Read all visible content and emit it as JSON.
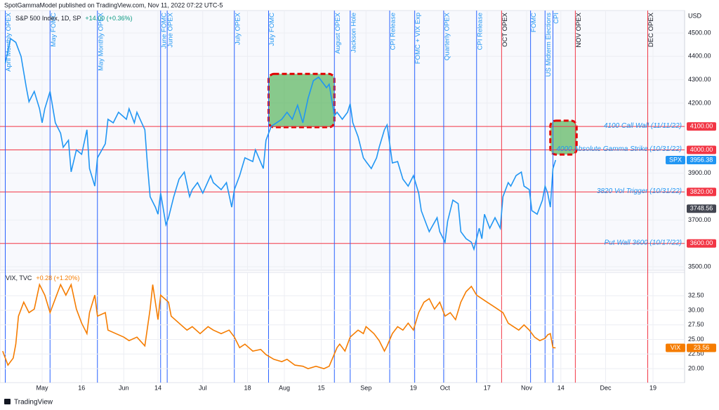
{
  "header": "SpotGammaModel published on TradingView.com, Nov 11, 2022 07:22 UTC-5",
  "footer": "TradingView",
  "chart_data": [
    {
      "type": "line",
      "legend_title": "S&P 500 Index, 1D, SP",
      "legend_change": "+14.00 (+0.36%)",
      "legend_change_color": "#089981",
      "axis_unit": "USD",
      "xlim": [
        105,
        365
      ],
      "ylim": [
        3485,
        4596
      ],
      "grid": true,
      "yticks": [
        {
          "value": 3500,
          "label": "3500.00"
        },
        {
          "value": 3700,
          "label": "3700.00"
        },
        {
          "value": 3900,
          "label": "3900.00"
        },
        {
          "value": 4200,
          "label": "4200.00"
        },
        {
          "value": 4300,
          "label": "4300.00"
        },
        {
          "value": 4400,
          "label": "4400.00"
        },
        {
          "value": 4500,
          "label": "4500.00"
        }
      ],
      "x": [
        107,
        109,
        111,
        113,
        115,
        116,
        118,
        120,
        121,
        122,
        124,
        126,
        128,
        129,
        131,
        132,
        134,
        136,
        138,
        139,
        141,
        142,
        145,
        146,
        148,
        150,
        153,
        154,
        156,
        157,
        160,
        161,
        162,
        164,
        165,
        166,
        168,
        169,
        171,
        173,
        175,
        177,
        178,
        180,
        182,
        185,
        186,
        189,
        191,
        193,
        194,
        196,
        198,
        201,
        202,
        205,
        206,
        208,
        210,
        212,
        214,
        216,
        218,
        220,
        222,
        224,
        226,
        227,
        229,
        230,
        232,
        233,
        235,
        237,
        238,
        239,
        241,
        243,
        244,
        246,
        248,
        249,
        251,
        252,
        254,
        256,
        258,
        260,
        262,
        264,
        265,
        267,
        268,
        271,
        272,
        274,
        275,
        277,
        279,
        280,
        282,
        284,
        285,
        287,
        288,
        289,
        291,
        293,
        295,
        296,
        298,
        299,
        301,
        303,
        304,
        306,
        307,
        309,
        311,
        312,
        313,
        314,
        315,
        316
      ],
      "series": [
        {
          "name": "SPX",
          "color": "#2196f3",
          "values": [
            4370,
            4476,
            4460,
            4400,
            4266,
            4206,
            4250,
            4176,
            4116,
            4176,
            4250,
            4116,
            4071,
            4011,
            4041,
            3906,
            4000,
            3981,
            4086,
            3920,
            3845,
            3966,
            4026,
            4131,
            4116,
            4161,
            4131,
            4176,
            4116,
            4161,
            4086,
            3935,
            3800,
            3755,
            3725,
            3815,
            3680,
            3710,
            3800,
            3875,
            3905,
            3800,
            3830,
            3860,
            3815,
            3890,
            3860,
            3830,
            3860,
            3755,
            3830,
            3890,
            3966,
            3950,
            4000,
            3920,
            4041,
            4101,
            4116,
            4131,
            4161,
            4131,
            4191,
            4116,
            4221,
            4296,
            4311,
            4296,
            4266,
            4281,
            4146,
            4161,
            4131,
            4161,
            4197,
            4116,
            4056,
            3966,
            3950,
            3920,
            3966,
            4011,
            4086,
            4107,
            3944,
            3950,
            3875,
            3845,
            3890,
            3815,
            3740,
            3680,
            3650,
            3710,
            3650,
            3605,
            3695,
            3785,
            3770,
            3650,
            3620,
            3605,
            3575,
            3665,
            3620,
            3725,
            3665,
            3710,
            3665,
            3800,
            3860,
            3845,
            3890,
            3905,
            3845,
            3830,
            3740,
            3725,
            3785,
            3845,
            3815,
            3755,
            3920,
            3956.38
          ]
        }
      ],
      "last_label": {
        "tag": "SPX",
        "value": 3956.38,
        "label": "3956.38"
      },
      "marker_label": {
        "value": 3748.56,
        "label": "3748.56"
      },
      "levels": [
        {
          "value": 4100,
          "label": "4100.00",
          "text": "4100 Call Wall (11/11/22)"
        },
        {
          "value": 4000,
          "label": "4000.00",
          "text": "4000 Absolute Gamma Strike (10/31/22)"
        },
        {
          "value": 3820,
          "label": "3820.00",
          "text": "3820 Vol Trigger (10/31/22)"
        },
        {
          "value": 3600,
          "label": "3600.00",
          "text": "Put Wall 3600 (10/17/22)"
        }
      ],
      "level_color": "#f23645",
      "zones": [
        {
          "x": [
            207,
            232
          ],
          "y": [
            4097,
            4325
          ]
        },
        {
          "x": [
            314,
            324
          ],
          "y": [
            3980,
            4125
          ]
        }
      ],
      "events": [
        {
          "x": 107,
          "label": "April Monthly OPEX",
          "color": "#2962ff",
          "text_color": "#2196f3"
        },
        {
          "x": 124,
          "label": "May FOMC",
          "color": "#2962ff",
          "text_color": "#2196f3"
        },
        {
          "x": 142,
          "label": "May Monthly OPEX",
          "color": "#2962ff",
          "text_color": "#2196f3"
        },
        {
          "x": 166,
          "label": "June FOMC",
          "color": "#2962ff",
          "text_color": "#2196f3"
        },
        {
          "x": 168.5,
          "label": "June OPEX",
          "color": "#2962ff",
          "text_color": "#2196f3"
        },
        {
          "x": 194,
          "label": "July OPEX",
          "color": "#2962ff",
          "text_color": "#2196f3"
        },
        {
          "x": 207,
          "label": "July FOMC",
          "color": "#2962ff",
          "text_color": "#2196f3"
        },
        {
          "x": 232,
          "label": "August OPEX",
          "color": "#2962ff",
          "text_color": "#2196f3"
        },
        {
          "x": 238,
          "label": "Jackson Hole",
          "color": "#2962ff",
          "text_color": "#2196f3"
        },
        {
          "x": 253,
          "label": "CPI Release",
          "color": "#2962ff",
          "text_color": "#2196f3"
        },
        {
          "x": 262.5,
          "label": "FOMC + VIX Exp",
          "color": "#2962ff",
          "text_color": "#2196f3"
        },
        {
          "x": 273.5,
          "label": "Quarterly OPEX",
          "color": "#2962ff",
          "text_color": "#2196f3"
        },
        {
          "x": 286,
          "label": "CPI Release",
          "color": "#2962ff",
          "text_color": "#2196f3"
        },
        {
          "x": 295.5,
          "label": "OCT OPEX",
          "color": "#f23645",
          "text_color": "#131722"
        },
        {
          "x": 306.5,
          "label": "FOMC",
          "color": "#2962ff",
          "text_color": "#2196f3"
        },
        {
          "x": 312,
          "label": "US Midterm Elections",
          "color": "#2962ff",
          "text_color": "#2196f3"
        },
        {
          "x": 315,
          "label": "CPI",
          "color": "#2962ff",
          "text_color": "#2196f3"
        },
        {
          "x": 323.5,
          "label": "NOV OPEX",
          "color": "#f23645",
          "text_color": "#131722"
        },
        {
          "x": 351,
          "label": "DEC OPEX",
          "color": "#f23645",
          "text_color": "#131722"
        }
      ]
    },
    {
      "type": "line",
      "legend_title": "VIX, TVC",
      "legend_change": "+0.28 (+1.20%)",
      "legend_change_color": "#f57c00",
      "xlim": [
        105,
        365
      ],
      "ylim": [
        17.6,
        36.5
      ],
      "grid": true,
      "yticks": [
        {
          "value": 20,
          "label": "20.00"
        },
        {
          "value": 22.5,
          "label": "22.50"
        },
        {
          "value": 25,
          "label": "25.00"
        },
        {
          "value": 27.5,
          "label": "27.50"
        },
        {
          "value": 30,
          "label": "30.00"
        },
        {
          "value": 32.5,
          "label": "32.50"
        }
      ],
      "xticks": [
        {
          "value": 121,
          "label": "May"
        },
        136,
        {
          "value": 152,
          "label": "Jun"
        },
        14,
        {
          "value": 182,
          "label": "Jul"
        },
        18,
        {
          "value": 213,
          "label": "Aug"
        },
        15,
        {
          "value": 244,
          "label": "Sep"
        },
        19,
        {
          "value": 274,
          "label": "Oct"
        },
        17,
        {
          "value": 305,
          "label": "Nov"
        },
        14,
        {
          "value": 335,
          "label": "Dec"
        },
        19
      ],
      "xtick_days": [
        {
          "value": 121,
          "label": "May"
        },
        {
          "value": 136,
          "label": "16"
        },
        {
          "value": 152,
          "label": "Jun"
        },
        {
          "value": 165,
          "label": "14"
        },
        {
          "value": 182,
          "label": "Jul"
        },
        {
          "value": 199,
          "label": "18"
        },
        {
          "value": 213,
          "label": "Aug"
        },
        {
          "value": 227,
          "label": "15"
        },
        {
          "value": 244,
          "label": "Sep"
        },
        {
          "value": 262,
          "label": "19"
        },
        {
          "value": 274,
          "label": "Oct"
        },
        {
          "value": 290,
          "label": "17"
        },
        {
          "value": 305,
          "label": "Nov"
        },
        {
          "value": 318,
          "label": "14"
        },
        {
          "value": 335,
          "label": "Dec"
        },
        {
          "value": 353,
          "label": "19"
        }
      ],
      "x": [
        106,
        108,
        110,
        111,
        112,
        114,
        116,
        118,
        120,
        122,
        124,
        126,
        128,
        130,
        132,
        134,
        136,
        138,
        139,
        141,
        142,
        145,
        146,
        149,
        152,
        154,
        157,
        160,
        162,
        163,
        165,
        166,
        169,
        170,
        173,
        176,
        178,
        181,
        184,
        186,
        189,
        192,
        194,
        196,
        198,
        201,
        204,
        206,
        209,
        212,
        214,
        217,
        220,
        222,
        225,
        228,
        230,
        233,
        234,
        236,
        238,
        241,
        243,
        244,
        247,
        249,
        251,
        252,
        254,
        256,
        258,
        260,
        262,
        264,
        266,
        268,
        270,
        272,
        274,
        276,
        278,
        280,
        282,
        284,
        286,
        288,
        290,
        292,
        294,
        296,
        298,
        300,
        302,
        304,
        306,
        308,
        310,
        312,
        313,
        314,
        315,
        316
      ],
      "series": [
        {
          "name": "VIX",
          "color": "#f57c00",
          "values": [
            23.0,
            20.6,
            21.8,
            24.2,
            29.0,
            31.4,
            29.6,
            30.2,
            34.4,
            32.6,
            29.6,
            32.0,
            34.4,
            32.6,
            34.4,
            30.2,
            27.8,
            26.0,
            29.6,
            32.6,
            29.0,
            29.6,
            26.6,
            26.0,
            25.4,
            24.8,
            25.4,
            23.9,
            30.2,
            34.4,
            28.4,
            32.6,
            31.4,
            29.0,
            27.8,
            26.6,
            27.2,
            26.0,
            27.2,
            26.6,
            26.0,
            26.6,
            25.4,
            23.6,
            24.2,
            23.0,
            23.3,
            22.4,
            21.6,
            21.2,
            21.6,
            20.6,
            20.4,
            20.0,
            20.4,
            20.0,
            20.4,
            23.6,
            24.2,
            23.0,
            25.4,
            26.6,
            26.0,
            27.2,
            26.0,
            24.8,
            23.0,
            23.9,
            26.0,
            27.2,
            26.6,
            27.8,
            26.6,
            29.6,
            31.4,
            32.0,
            30.2,
            31.4,
            29.0,
            29.6,
            28.4,
            31.4,
            33.2,
            34.1,
            32.6,
            32.0,
            31.4,
            30.8,
            30.2,
            29.6,
            27.8,
            27.2,
            26.6,
            27.5,
            26.6,
            25.4,
            24.8,
            25.2,
            25.8,
            26.0,
            23.6,
            23.56
          ]
        }
      ],
      "last_label": {
        "tag": "VIX",
        "value": 23.56,
        "label": "23.56"
      }
    }
  ]
}
